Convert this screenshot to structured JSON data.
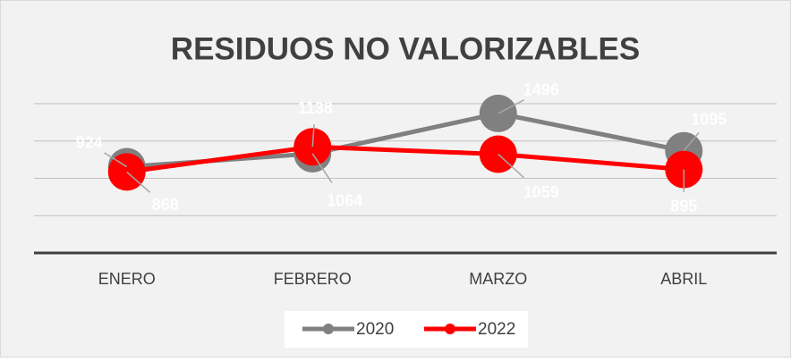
{
  "chart_data": {
    "type": "line",
    "title": "RESIDUOS NO VALORIZABLES",
    "categories": [
      "ENERO",
      "FEBRERO",
      "MARZO",
      "ABRIL"
    ],
    "series": [
      {
        "name": "2020",
        "color": "#808080",
        "values": [
          924,
          1064,
          1496,
          1095
        ]
      },
      {
        "name": "2022",
        "color": "#ff0000",
        "values": [
          868,
          1138,
          1059,
          895
        ]
      }
    ],
    "ylim": [
      0,
      1600
    ],
    "yticks": [
      0,
      400,
      800,
      1200,
      1600
    ],
    "grid": true,
    "legend": "bottom"
  }
}
